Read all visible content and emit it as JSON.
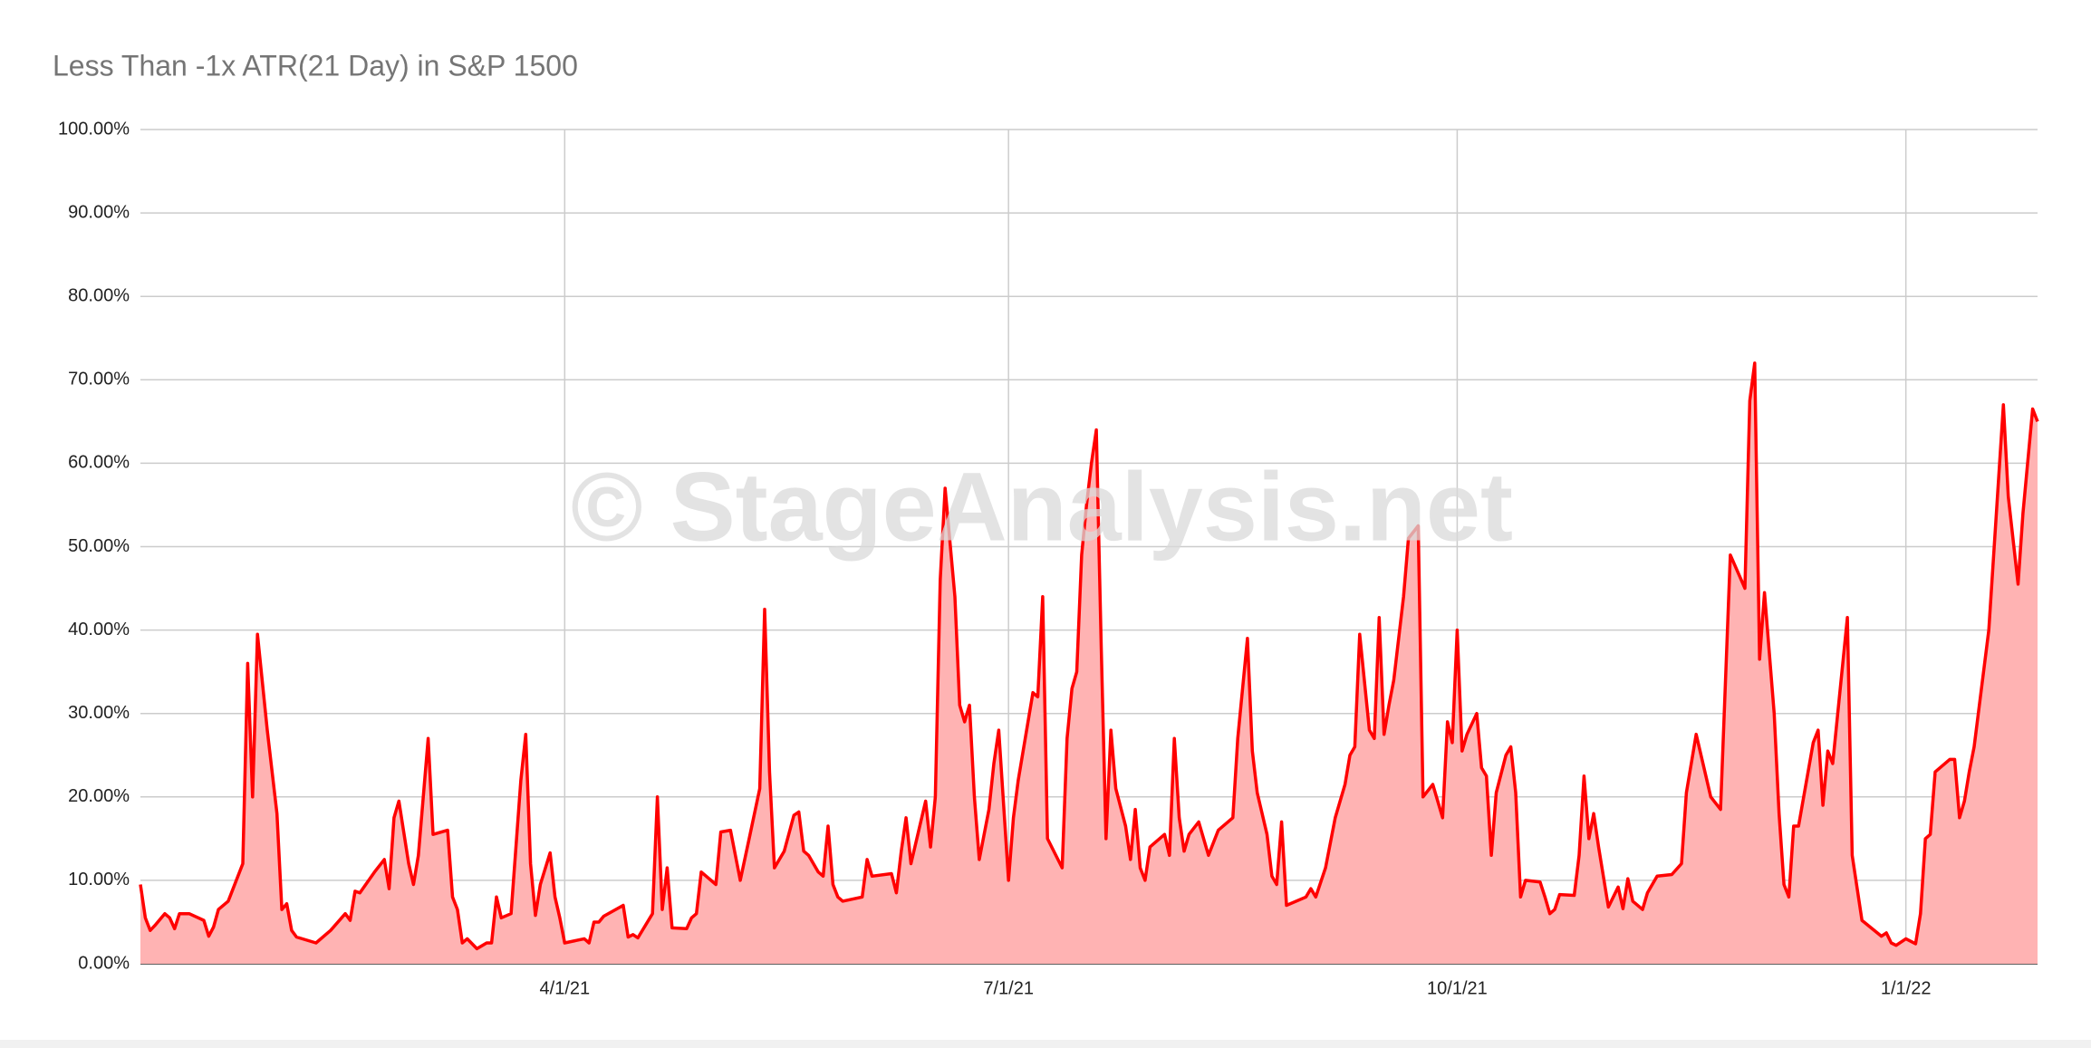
{
  "chart_data": {
    "type": "area",
    "title": "Less Than -1x ATR(21 Day) in S&P 1500",
    "watermark": "© StageAnalysis.net",
    "x": [
      "1/4/21",
      "1/5/21",
      "1/6/21",
      "1/7/21",
      "1/9/21",
      "1/10/21",
      "1/11/21",
      "1/12/21",
      "1/14/21",
      "1/17/21",
      "1/18/21",
      "1/19/21",
      "1/20/21",
      "1/22/21",
      "1/25/21",
      "1/26/21",
      "1/27/21",
      "1/28/21",
      "1/30/21",
      "2/1/21",
      "2/2/21",
      "2/3/21",
      "2/4/21",
      "2/5/21",
      "2/9/21",
      "2/12/21",
      "2/15/21",
      "2/16/21",
      "2/17/21",
      "2/18/21",
      "2/21/21",
      "2/23/21",
      "2/24/21",
      "2/25/21",
      "2/26/21",
      "2/28/21",
      "3/1/21",
      "3/2/21",
      "3/4/21",
      "3/5/21",
      "3/8/21",
      "3/9/21",
      "3/10/21",
      "3/11/21",
      "3/12/21",
      "3/14/21",
      "3/16/21",
      "3/17/21",
      "3/18/21",
      "3/19/21",
      "3/21/21",
      "3/23/21",
      "3/24/21",
      "3/25/21",
      "3/26/21",
      "3/27/21",
      "3/29/21",
      "3/30/21",
      "3/31/21",
      "4/1/21",
      "4/5/21",
      "4/6/21",
      "4/7/21",
      "4/8/21",
      "4/9/21",
      "4/13/21",
      "4/14/21",
      "4/15/21",
      "4/16/21",
      "4/19/21",
      "4/20/21",
      "4/21/21",
      "4/22/21",
      "4/23/21",
      "4/26/21",
      "4/27/21",
      "4/28/21",
      "4/29/21",
      "5/2/21",
      "5/3/21",
      "5/5/21",
      "5/6/21",
      "5/7/21",
      "5/9/21",
      "5/11/21",
      "5/12/21",
      "5/13/21",
      "5/14/21",
      "5/16/21",
      "5/18/21",
      "5/19/21",
      "5/20/21",
      "5/21/21",
      "5/23/21",
      "5/24/21",
      "5/25/21",
      "5/26/21",
      "5/27/21",
      "5/28/21",
      "6/1/21",
      "6/2/21",
      "6/3/21",
      "6/7/21",
      "6/8/21",
      "6/9/21",
      "6/10/21",
      "6/11/21",
      "6/13/21",
      "6/14/21",
      "6/15/21",
      "6/16/21",
      "6/17/21",
      "6/18/21",
      "6/20/21",
      "6/21/21",
      "6/22/21",
      "6/23/21",
      "6/24/21",
      "6/25/21",
      "6/27/21",
      "6/28/21",
      "6/29/21",
      "6/30/21",
      "7/1/21",
      "7/2/21",
      "7/3/21",
      "7/6/21",
      "7/7/21",
      "7/8/21",
      "7/9/21",
      "7/12/21",
      "7/13/21",
      "7/14/21",
      "7/15/21",
      "7/16/21",
      "7/17/21",
      "7/18/21",
      "7/19/21",
      "7/20/21",
      "7/21/21",
      "7/22/21",
      "7/23/21",
      "7/25/21",
      "7/26/21",
      "7/27/21",
      "7/28/21",
      "7/29/21",
      "7/30/21",
      "8/2/21",
      "8/3/21",
      "8/4/21",
      "8/5/21",
      "8/6/21",
      "8/7/21",
      "8/9/21",
      "8/11/21",
      "8/13/21",
      "8/16/21",
      "8/17/21",
      "8/19/21",
      "8/20/21",
      "8/21/21",
      "8/23/21",
      "8/24/21",
      "8/25/21",
      "8/26/21",
      "8/27/21",
      "8/31/21",
      "9/1/21",
      "9/2/21",
      "9/4/21",
      "9/6/21",
      "9/8/21",
      "9/9/21",
      "9/10/21",
      "9/11/21",
      "9/13/21",
      "9/14/21",
      "9/15/21",
      "9/16/21",
      "9/17/21",
      "9/18/21",
      "9/20/21",
      "9/21/21",
      "9/23/21",
      "9/24/21",
      "9/26/21",
      "9/27/21",
      "9/28/21",
      "9/29/21",
      "9/30/21",
      "10/1/21",
      "10/2/21",
      "10/3/21",
      "10/5/21",
      "10/6/21",
      "10/7/21",
      "10/8/21",
      "10/9/21",
      "10/11/21",
      "10/12/21",
      "10/13/21",
      "10/14/21",
      "10/15/21",
      "10/18/21",
      "10/19/21",
      "10/20/21",
      "10/21/21",
      "10/22/21",
      "10/25/21",
      "10/26/21",
      "10/27/21",
      "10/28/21",
      "10/29/21",
      "10/30/21",
      "11/1/21",
      "11/3/21",
      "11/4/21",
      "11/5/21",
      "11/6/21",
      "11/8/21",
      "11/9/21",
      "11/11/21",
      "11/14/21",
      "11/16/21",
      "11/17/21",
      "11/19/21",
      "11/22/21",
      "11/24/21",
      "11/26/21",
      "11/29/21",
      "11/30/21",
      "12/1/21",
      "12/2/21",
      "12/3/21",
      "12/5/21",
      "12/6/21",
      "12/7/21",
      "12/8/21",
      "12/9/21",
      "12/10/21",
      "12/13/21",
      "12/14/21",
      "12/15/21",
      "12/16/21",
      "12/17/21",
      "12/20/21",
      "12/21/21",
      "12/23/21",
      "12/27/21",
      "12/28/21",
      "12/29/21",
      "12/30/21",
      "1/1/22",
      "1/3/22",
      "1/4/22",
      "1/5/22",
      "1/6/22",
      "1/7/22",
      "1/10/22",
      "1/11/22",
      "1/12/22",
      "1/13/22",
      "1/14/22",
      "1/15/22",
      "1/18/22",
      "1/21/22",
      "1/22/22",
      "1/24/22",
      "1/25/22",
      "1/27/22",
      "1/28/22"
    ],
    "series": [
      {
        "color": "#ff0000",
        "fill": "#ffb3b3",
        "values": [
          9.5,
          5.5,
          4,
          4.6,
          6,
          5.5,
          4.2,
          6,
          6,
          5.2,
          3.3,
          4.4,
          6.5,
          7.5,
          12,
          36,
          20,
          39.5,
          28,
          18,
          6.5,
          7.2,
          4,
          3.2,
          2.5,
          4,
          6,
          5.2,
          8.7,
          8.5,
          11,
          12.5,
          9,
          17.5,
          19.5,
          12,
          9.5,
          13,
          27,
          15.5,
          16,
          8,
          6.5,
          2.5,
          3,
          1.8,
          2.5,
          2.5,
          8,
          5.5,
          6,
          22,
          27.5,
          12,
          5.8,
          9.5,
          13.3,
          8,
          5.5,
          2.5,
          3,
          2.5,
          5,
          5,
          5.7,
          7,
          3.2,
          3.5,
          3.1,
          6,
          20,
          6.5,
          11.5,
          4.3,
          4.2,
          5.5,
          6,
          11,
          9.5,
          15.8,
          16,
          13,
          10,
          15.5,
          21,
          42.5,
          23,
          11.5,
          13.5,
          17.8,
          18.2,
          13.5,
          13,
          11,
          10.5,
          16.5,
          9.5,
          8,
          7.5,
          8,
          12.5,
          10.5,
          10.8,
          8.5,
          13.5,
          17.5,
          12,
          17,
          19.5,
          14,
          20,
          46,
          57,
          44,
          31,
          29,
          31,
          20,
          12.5,
          18.5,
          24,
          28,
          19,
          10,
          17.5,
          22,
          32.5,
          32,
          44,
          15,
          11.5,
          27,
          33,
          35,
          49,
          55,
          60,
          64,
          38,
          15,
          28,
          21,
          16.5,
          12.5,
          18.5,
          11.5,
          10,
          14,
          15.5,
          13,
          27,
          17.5,
          13.5,
          15.5,
          17,
          13,
          16,
          17.5,
          27,
          39,
          25.5,
          20.5,
          15.5,
          10.5,
          9.5,
          17,
          7,
          8,
          9,
          8,
          11.5,
          17.5,
          21.5,
          25,
          26,
          39.5,
          28,
          27,
          41.5,
          27.5,
          31,
          34,
          44,
          51,
          52.5,
          20,
          21.5,
          19.5,
          17.5,
          29,
          26.5,
          40,
          25.5,
          27.5,
          30,
          23.5,
          22.5,
          13,
          20.5,
          25,
          26,
          20.5,
          8,
          10,
          9.8,
          8,
          6,
          6.5,
          8.3,
          8.2,
          13,
          22.5,
          15,
          18,
          14,
          6.8,
          9.2,
          6.6,
          10.2,
          7.5,
          6.5,
          8.5,
          10.5,
          10.7,
          12,
          20.5,
          27.5,
          20,
          18.5,
          49,
          45,
          67.5,
          72,
          36.5,
          44.5,
          30,
          18,
          9.5,
          8,
          16.5,
          16.5,
          26.5,
          28,
          19,
          25.5,
          24,
          41.5,
          13,
          5.2,
          3.3,
          3.7,
          2.5,
          2.2,
          3,
          2.4,
          6,
          15,
          15.5,
          23,
          24.5,
          24.5,
          17.5,
          19.5,
          23,
          26,
          40,
          67,
          56,
          45.5,
          54,
          66.5,
          65
        ]
      }
    ],
    "xlim": [
      "1/4/21",
      "1/28/22"
    ],
    "xticks": [
      "4/1/21",
      "7/1/21",
      "10/1/21",
      "1/1/22"
    ],
    "ylim": [
      0,
      100
    ],
    "yticks": [
      {
        "value": 0,
        "label": "0.00%"
      },
      {
        "value": 10,
        "label": "10.00%"
      },
      {
        "value": 20,
        "label": "20.00%"
      },
      {
        "value": 30,
        "label": "30.00%"
      },
      {
        "value": 40,
        "label": "40.00%"
      },
      {
        "value": 50,
        "label": "50.00%"
      },
      {
        "value": 60,
        "label": "60.00%"
      },
      {
        "value": 70,
        "label": "70.00%"
      },
      {
        "value": 80,
        "label": "80.00%"
      },
      {
        "value": 90,
        "label": "90.00%"
      },
      {
        "value": 100,
        "label": "100.00%"
      }
    ],
    "grid": true
  }
}
